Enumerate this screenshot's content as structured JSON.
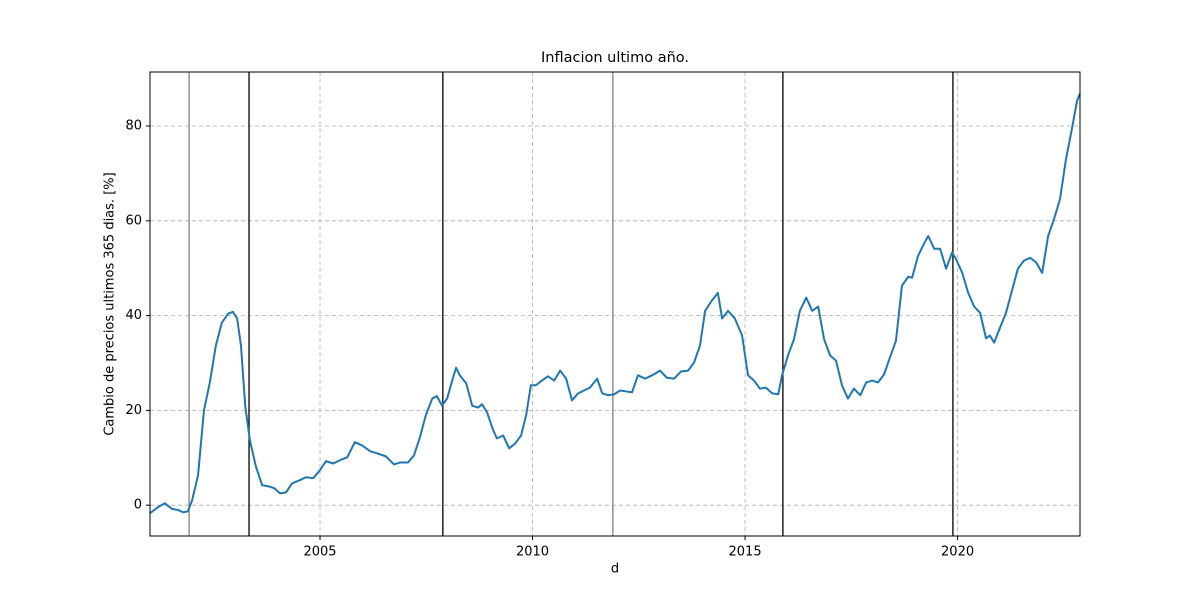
{
  "chart_data": {
    "type": "line",
    "title": "Inflacion ultimo año.",
    "xlabel": "d",
    "ylabel": "Cambio de precios ultimos 365 dias. [%]",
    "color": "#1f77b4",
    "grid": true,
    "xlim": [
      2001,
      2022.88
    ],
    "ylim": [
      -6.5,
      91.4
    ],
    "xticks": [
      2005,
      2010,
      2015,
      2020
    ],
    "yticks": [
      0,
      20,
      40,
      60,
      80
    ],
    "vlines": [
      {
        "x": 2001.92,
        "color": "#808080"
      },
      {
        "x": 2003.33,
        "color": "#000000"
      },
      {
        "x": 2007.89,
        "color": "#000000"
      },
      {
        "x": 2011.89,
        "color": "#808080"
      },
      {
        "x": 2015.89,
        "color": "#000000"
      },
      {
        "x": 2019.89,
        "color": "#000000"
      }
    ],
    "x": [
      2001.0,
      2001.19,
      2001.35,
      2001.52,
      2001.66,
      2001.78,
      2001.89,
      2001.99,
      2002.13,
      2002.27,
      2002.41,
      2002.55,
      2002.69,
      2002.84,
      2002.95,
      2003.05,
      2003.14,
      2003.24,
      2003.35,
      2003.49,
      2003.64,
      2003.78,
      2003.92,
      2004.06,
      2004.2,
      2004.34,
      2004.53,
      2004.67,
      2004.84,
      2005.0,
      2005.14,
      2005.31,
      2005.47,
      2005.64,
      2005.82,
      2005.99,
      2006.18,
      2006.36,
      2006.55,
      2006.74,
      2006.88,
      2007.07,
      2007.21,
      2007.35,
      2007.49,
      2007.64,
      2007.75,
      2007.87,
      2007.99,
      2008.11,
      2008.2,
      2008.29,
      2008.44,
      2008.58,
      2008.72,
      2008.81,
      2008.93,
      2009.05,
      2009.16,
      2009.31,
      2009.45,
      2009.59,
      2009.73,
      2009.85,
      2009.96,
      2010.08,
      2010.22,
      2010.36,
      2010.51,
      2010.65,
      2010.79,
      2010.93,
      2011.07,
      2011.21,
      2011.35,
      2011.52,
      2011.64,
      2011.78,
      2011.92,
      2012.06,
      2012.2,
      2012.34,
      2012.48,
      2012.65,
      2012.81,
      2013.0,
      2013.16,
      2013.33,
      2013.49,
      2013.66,
      2013.8,
      2013.94,
      2014.06,
      2014.22,
      2014.36,
      2014.46,
      2014.6,
      2014.76,
      2014.93,
      2015.07,
      2015.21,
      2015.35,
      2015.49,
      2015.64,
      2015.78,
      2015.87,
      2016.01,
      2016.15,
      2016.29,
      2016.44,
      2016.58,
      2016.72,
      2016.86,
      2017.0,
      2017.14,
      2017.28,
      2017.42,
      2017.56,
      2017.71,
      2017.85,
      2017.99,
      2018.13,
      2018.27,
      2018.41,
      2018.55,
      2018.69,
      2018.84,
      2018.93,
      2019.07,
      2019.21,
      2019.31,
      2019.45,
      2019.59,
      2019.73,
      2019.87,
      2019.96,
      2020.11,
      2020.25,
      2020.39,
      2020.53,
      2020.67,
      2020.76,
      2020.86,
      2021.0,
      2021.14,
      2021.28,
      2021.42,
      2021.56,
      2021.71,
      2021.85,
      2021.99,
      2022.13,
      2022.27,
      2022.41,
      2022.55,
      2022.69,
      2022.81,
      2022.88
    ],
    "values": [
      -1.7,
      -0.4,
      0.4,
      -0.8,
      -1,
      -1.5,
      -1.3,
      1,
      6.3,
      20,
      26,
      33.7,
      38.5,
      40.4,
      40.8,
      39.4,
      33.7,
      21,
      13.7,
      8.2,
      4.2,
      4,
      3.6,
      2.5,
      2.7,
      4.6,
      5.3,
      5.9,
      5.7,
      7.4,
      9.3,
      8.8,
      9.5,
      10.1,
      13.3,
      12.6,
      11.4,
      10.9,
      10.3,
      8.6,
      9,
      9,
      10.5,
      14.3,
      19,
      22.5,
      23,
      21,
      22.5,
      26.3,
      29,
      27.4,
      25.7,
      21,
      20.6,
      21.3,
      19.6,
      16.4,
      14.1,
      14.7,
      12,
      13,
      14.7,
      19,
      25.3,
      25.3,
      26.3,
      27.2,
      26.3,
      28.4,
      26.7,
      22.1,
      23.6,
      24.2,
      24.8,
      26.7,
      23.6,
      23.2,
      23.4,
      24.2,
      24,
      23.8,
      27.4,
      26.7,
      27.4,
      28.4,
      26.9,
      26.7,
      28.2,
      28.4,
      30.1,
      33.7,
      41,
      43.2,
      44.8,
      39.4,
      41,
      39.4,
      35.8,
      27.4,
      26.3,
      24.6,
      24.8,
      23.6,
      23.4,
      27.4,
      31.6,
      35,
      41,
      43.8,
      41,
      41.9,
      35,
      31.6,
      30.5,
      25.3,
      22.5,
      24.6,
      23.2,
      25.9,
      26.3,
      25.9,
      27.6,
      31.2,
      34.7,
      46.3,
      48.2,
      48,
      52.6,
      55.2,
      56.8,
      54.1,
      54.1,
      49.9,
      53.3,
      52,
      49,
      44.8,
      41.9,
      40.6,
      35.2,
      35.8,
      34.3,
      37.5,
      40.6,
      45.3,
      49.9,
      51.6,
      52.2,
      51.2,
      49,
      56.8,
      60.4,
      64.6,
      73,
      79.4,
      85.3,
      86.9
    ]
  }
}
